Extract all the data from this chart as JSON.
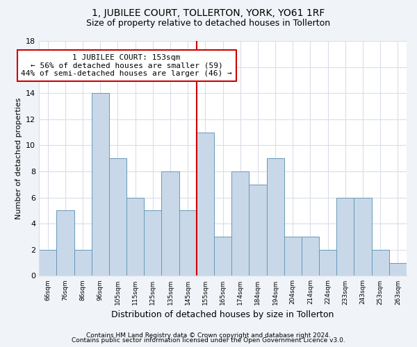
{
  "title": "1, JUBILEE COURT, TOLLERTON, YORK, YO61 1RF",
  "subtitle": "Size of property relative to detached houses in Tollerton",
  "xlabel": "Distribution of detached houses by size in Tollerton",
  "ylabel_display": "Number of detached properties",
  "categories": [
    "66sqm",
    "76sqm",
    "86sqm",
    "96sqm",
    "105sqm",
    "115sqm",
    "125sqm",
    "135sqm",
    "145sqm",
    "155sqm",
    "165sqm",
    "174sqm",
    "184sqm",
    "194sqm",
    "204sqm",
    "214sqm",
    "224sqm",
    "233sqm",
    "243sqm",
    "253sqm",
    "263sqm"
  ],
  "values": [
    2,
    5,
    2,
    14,
    9,
    6,
    5,
    8,
    5,
    11,
    3,
    8,
    7,
    9,
    3,
    3,
    2,
    6,
    6,
    2,
    1
  ],
  "bar_color": "#c8d8e8",
  "bar_edge_color": "#6699bb",
  "red_line_index": 9,
  "annotation_text": "1 JUBILEE COURT: 153sqm\n← 56% of detached houses are smaller (59)\n44% of semi-detached houses are larger (46) →",
  "annotation_box_color": "#ffffff",
  "annotation_box_edge_color": "#cc0000",
  "red_line_color": "#cc0000",
  "footer_text1": "Contains HM Land Registry data © Crown copyright and database right 2024.",
  "footer_text2": "Contains public sector information licensed under the Open Government Licence v3.0.",
  "bg_color": "#f0f4f8",
  "plot_bg_color": "#ffffff",
  "grid_color": "#d8dde8",
  "ylim": [
    0,
    18
  ],
  "yticks": [
    0,
    2,
    4,
    6,
    8,
    10,
    12,
    14,
    16,
    18
  ],
  "title_fontsize": 10,
  "subtitle_fontsize": 9
}
